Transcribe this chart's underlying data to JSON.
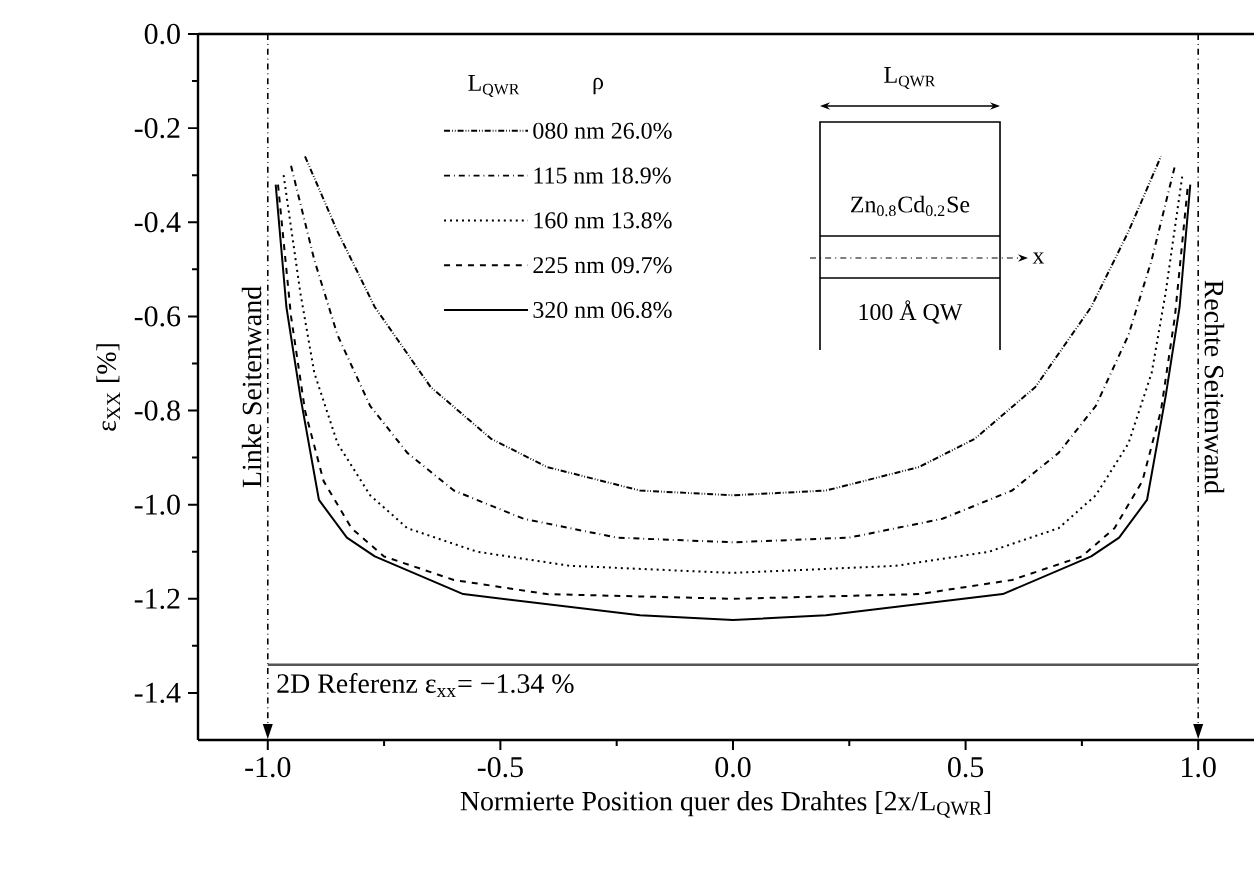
{
  "chart_data": {
    "type": "line",
    "xlabel": "Normierte Position quer des Drahtes [2x/L$_{QWR}$]",
    "ylabel": "ε$_{XX}$ [%]",
    "legend_title": "L$_{QWR}$",
    "legend": "top",
    "xlim": [
      -1.15,
      1.12
    ],
    "ylim": [
      -1.5,
      0
    ],
    "xticks": [
      {
        "value": -1.0,
        "label": "-1.0"
      },
      -0.5,
      {
        "value": 0.0,
        "label": "0.0"
      },
      0.5,
      {
        "value": 1.0,
        "label": "1.0"
      }
    ],
    "yticks": [
      {
        "value": 0.0,
        "label": "0.0"
      },
      -0.2,
      -0.4,
      -0.6,
      -0.8,
      {
        "value": -1.0,
        "label": "-1.0"
      },
      -1.2,
      -1.4
    ],
    "series": [
      {
        "name": "080 nm 26.0%",
        "color": "#000000",
        "line_style": "dashdotdotted",
        "x": [
          -0.92,
          -0.85,
          -0.77,
          -0.65,
          -0.52,
          -0.4,
          -0.2,
          0,
          0.2,
          0.4,
          0.52,
          0.65,
          0.77,
          0.85,
          0.92
        ],
        "values": [
          -0.26,
          -0.42,
          -0.58,
          -0.75,
          -0.86,
          -0.92,
          -0.97,
          -0.98,
          -0.97,
          -0.92,
          -0.86,
          -0.75,
          -0.58,
          -0.42,
          -0.26
        ]
      },
      {
        "name": "115 nm 18.9%",
        "color": "#000000",
        "line_style": "dashdotted",
        "x": [
          -0.95,
          -0.9,
          -0.85,
          -0.78,
          -0.7,
          -0.6,
          -0.45,
          -0.25,
          0,
          0.25,
          0.45,
          0.6,
          0.7,
          0.78,
          0.85,
          0.9,
          0.95
        ],
        "values": [
          -0.28,
          -0.48,
          -0.64,
          -0.79,
          -0.89,
          -0.97,
          -1.03,
          -1.07,
          -1.08,
          -1.07,
          -1.03,
          -0.97,
          -0.89,
          -0.79,
          -0.64,
          -0.48,
          -0.28
        ]
      },
      {
        "name": "160 nm 13.8%",
        "color": "#000000",
        "line_style": "dotted",
        "x": [
          -0.966,
          -0.93,
          -0.9,
          -0.85,
          -0.78,
          -0.7,
          -0.55,
          -0.35,
          0,
          0.35,
          0.55,
          0.7,
          0.78,
          0.85,
          0.9,
          0.93,
          0.966
        ],
        "values": [
          -0.3,
          -0.55,
          -0.72,
          -0.87,
          -0.98,
          -1.05,
          -1.1,
          -1.13,
          -1.145,
          -1.13,
          -1.1,
          -1.05,
          -0.98,
          -0.87,
          -0.72,
          -0.55,
          -0.3
        ]
      },
      {
        "name": "225 nm 09.7%",
        "color": "#000000",
        "line_style": "dashed",
        "x": [
          -0.978,
          -0.95,
          -0.92,
          -0.88,
          -0.82,
          -0.75,
          -0.6,
          -0.4,
          0,
          0.4,
          0.6,
          0.75,
          0.82,
          0.88,
          0.92,
          0.95,
          0.978
        ],
        "values": [
          -0.32,
          -0.6,
          -0.8,
          -0.95,
          -1.05,
          -1.11,
          -1.16,
          -1.19,
          -1.2,
          -1.19,
          -1.16,
          -1.11,
          -1.05,
          -0.95,
          -0.8,
          -0.6,
          -0.32
        ]
      },
      {
        "name": "320 nm 06.8%",
        "color": "#000000",
        "line_style": "solid",
        "x": [
          -0.983,
          -0.96,
          -0.93,
          -0.89,
          -0.83,
          -0.77,
          -0.58,
          -0.2,
          0,
          0.2,
          0.58,
          0.77,
          0.83,
          0.89,
          0.93,
          0.96,
          0.983
        ],
        "values": [
          -0.32,
          -0.58,
          -0.77,
          -0.99,
          -1.07,
          -1.11,
          -1.19,
          -1.235,
          -1.245,
          -1.235,
          -1.19,
          -1.11,
          -1.07,
          -0.99,
          -0.77,
          -0.58,
          -0.32
        ]
      }
    ],
    "ref_lines": [
      {
        "axis": "x",
        "value": -1.0,
        "label": "Linke Seitenwand",
        "line_style": "dashdotted",
        "color": "#000000"
      },
      {
        "axis": "x",
        "value": 1.0,
        "label": "Rechte Seitenwand",
        "line_style": "dashdotted",
        "color": "#000000"
      },
      {
        "axis": "y",
        "value": -1.34,
        "label": "2D Referenz ε$_{xx}$= −1.34 %",
        "line_style": "solid",
        "color": "#555555"
      }
    ],
    "annotations": [
      "ρ",
      "L$_{QWR}$",
      "Zn$_{0.8}$Cd$_{0.2}$Se",
      "x",
      "100 Å QW"
    ]
  }
}
